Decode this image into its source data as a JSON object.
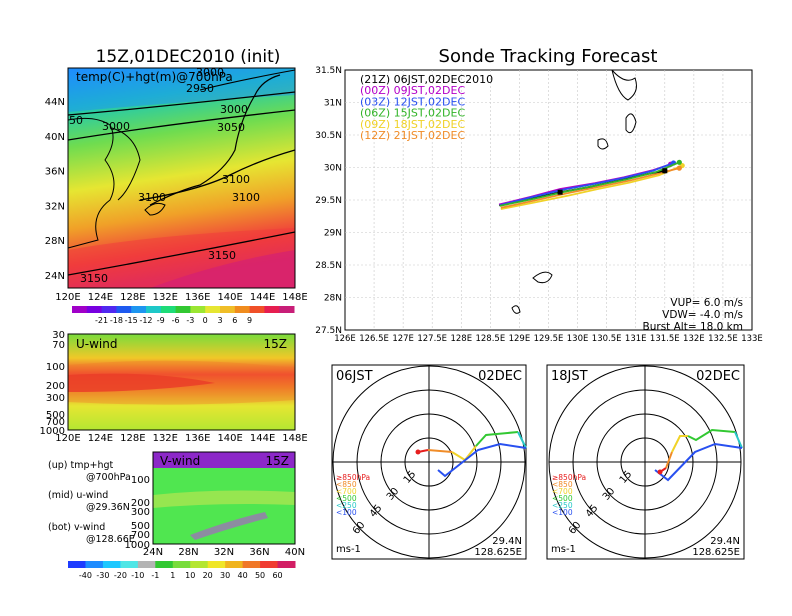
{
  "left_title": "15Z,01DEC2010 (init)",
  "right_title": "Sonde Tracking Forecast",
  "map_label": "temp(C)+hgt(m)@700hPa",
  "contour_labels": [
    "3000",
    "2950",
    "3000",
    "50",
    "3000",
    "3050",
    "3100",
    "3100",
    "3100",
    "3150",
    "3150"
  ],
  "map_lat_ticks": [
    "44N",
    "40N",
    "36N",
    "32N",
    "28N",
    "24N"
  ],
  "map_lon_ticks": [
    "120E",
    "124E",
    "128E",
    "132E",
    "136E",
    "140E",
    "144E",
    "148E"
  ],
  "temp_colorbar": [
    "-21",
    "-18",
    "-15",
    "-12",
    "-9",
    "-6",
    "-3",
    "0",
    "3",
    "6",
    "9"
  ],
  "temp_colors": [
    "#a000c8",
    "#7800e0",
    "#5028f0",
    "#1e5af0",
    "#1e96f0",
    "#1ec8c8",
    "#1edc78",
    "#32c832",
    "#9be632",
    "#e6e632",
    "#f0be28",
    "#f08c1e",
    "#f05028",
    "#e61e50",
    "#c81e78"
  ],
  "uwind": {
    "label": "U-wind",
    "time": "15Z",
    "p_ticks": [
      "30",
      "70",
      "100",
      "200",
      "300",
      "500",
      "700",
      "1000"
    ],
    "lon_ticks": [
      "120E",
      "124E",
      "128E",
      "132E",
      "136E",
      "140E",
      "144E",
      "148E"
    ]
  },
  "vwind": {
    "label": "V-wind",
    "time": "15Z",
    "p_ticks": [
      "100",
      "200",
      "300",
      "500",
      "700",
      "1000"
    ],
    "lat_ticks": [
      "24N",
      "28N",
      "32N",
      "36N",
      "40N"
    ]
  },
  "notes": [
    {
      "a": "(up) tmp+hgt",
      "b": "@700hPa"
    },
    {
      "a": "(mid) u-wind",
      "b": "@29.36N"
    },
    {
      "a": "(bot) v-wind",
      "b": "@128.66E"
    }
  ],
  "wind_colorbar": [
    "-40",
    "-30",
    "-20",
    "-10",
    "-1",
    "1",
    "10",
    "20",
    "30",
    "40",
    "50",
    "60"
  ],
  "wind_colors": [
    "#1e3cff",
    "#1e8cff",
    "#1ec8ff",
    "#50e6e6",
    "#b4b4b4",
    "#32c832",
    "#78dc3c",
    "#b4e632",
    "#f0e628",
    "#f0b41e",
    "#f07828",
    "#f03c32",
    "#d21e64"
  ],
  "track": {
    "lat_ticks": [
      "31.5N",
      "31N",
      "30.5N",
      "30N",
      "29.5N",
      "29N",
      "28.5N",
      "28N",
      "27.5N"
    ],
    "lon_ticks": [
      "126E",
      "126.5E",
      "127E",
      "127.5E",
      "128E",
      "128.5E",
      "129E",
      "129.5E",
      "130E",
      "130.5E",
      "131E",
      "131.5E",
      "132E",
      "132.5E",
      "133E"
    ],
    "legend": [
      {
        "text": "(21Z) 06JST,02DEC2010",
        "color": "#000000"
      },
      {
        "text": "(00Z) 09JST,02DEC",
        "color": "#b400c8"
      },
      {
        "text": "(03Z) 12JST,02DEC",
        "color": "#2850f0"
      },
      {
        "text": "(06Z) 15JST,02DEC",
        "color": "#32b428"
      },
      {
        "text": "(09Z) 18JST,02DEC",
        "color": "#f0d228"
      },
      {
        "text": "(12Z) 21JST,02DEC",
        "color": "#f08c28"
      }
    ],
    "stats": [
      "VUP=  6.0  m/s",
      "VDW= -4.0  m/s",
      "Burst Alt= 18.0  km"
    ]
  },
  "hodo_left": {
    "time": "06JST",
    "date": "02DEC",
    "lat": "29.4N",
    "lon": "128.625E",
    "unit": "ms-1",
    "ring_labels": [
      "15",
      "30",
      "45",
      "60"
    ]
  },
  "hodo_right": {
    "time": "18JST",
    "date": "02DEC",
    "lat": "29.4N",
    "lon": "128.625E",
    "unit": "ms-1",
    "ring_labels": [
      "15",
      "30",
      "45",
      "60"
    ]
  },
  "hodo_legend": [
    {
      "text": "≥850hPa",
      "color": "#e61e1e"
    },
    {
      "text": "<850",
      "color": "#f08c28"
    },
    {
      "text": "<700",
      "color": "#f0d228"
    },
    {
      "text": "<500",
      "color": "#32c832"
    },
    {
      "text": "<250",
      "color": "#28c8c8"
    },
    {
      "text": "<100",
      "color": "#2850f0"
    }
  ],
  "chart_data": {
    "type": "line",
    "title": "Sonde Tracking Forecast",
    "xlim": [
      126,
      133
    ],
    "ylim": [
      27.5,
      31.5
    ],
    "series": [
      {
        "name": "(21Z) 06JST,02DEC2010",
        "x": [
          128.65,
          129.2,
          129.7,
          130.2,
          130.7,
          131.2,
          131.5
        ],
        "y": [
          29.42,
          29.52,
          29.62,
          29.7,
          29.8,
          29.9,
          29.95
        ]
      },
      {
        "name": "(00Z) 09JST,02DEC",
        "x": [
          128.65,
          129.2,
          129.7,
          130.3,
          130.8,
          131.3,
          131.6
        ],
        "y": [
          29.43,
          29.55,
          29.67,
          29.76,
          29.85,
          29.96,
          30.05
        ]
      },
      {
        "name": "(03Z) 12JST,02DEC",
        "x": [
          128.66,
          129.2,
          129.75,
          130.3,
          130.8,
          131.3,
          131.65
        ],
        "y": [
          29.42,
          29.54,
          29.66,
          29.75,
          29.84,
          29.95,
          30.07
        ]
      },
      {
        "name": "(06Z) 15JST,02DEC",
        "x": [
          128.66,
          129.25,
          129.8,
          130.3,
          130.85,
          131.35,
          131.75
        ],
        "y": [
          29.41,
          29.52,
          29.63,
          29.72,
          29.82,
          29.93,
          30.08
        ]
      },
      {
        "name": "(09Z) 18JST,02DEC",
        "x": [
          128.68,
          129.3,
          129.85,
          130.35,
          130.9,
          131.4,
          131.8
        ],
        "y": [
          29.36,
          29.47,
          29.57,
          29.67,
          29.77,
          29.88,
          30.03
        ]
      },
      {
        "name": "(12Z) 21JST,02DEC",
        "x": [
          128.68,
          129.3,
          129.85,
          130.35,
          130.9,
          131.4,
          131.75
        ],
        "y": [
          29.38,
          29.5,
          29.61,
          29.7,
          29.8,
          29.91,
          29.99
        ]
      }
    ]
  }
}
